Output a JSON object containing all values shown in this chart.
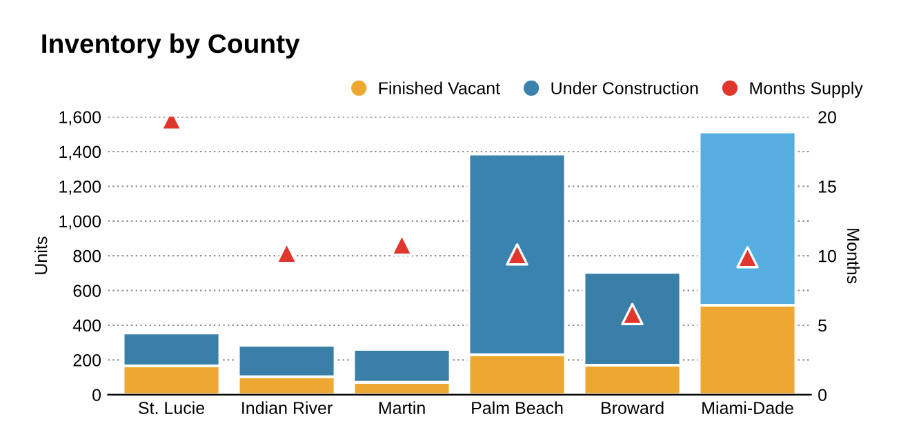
{
  "chart_data": {
    "type": "bar",
    "title": "Inventory by County",
    "ylabel": "Units",
    "y2label": "Months",
    "categories": [
      "St. Lucie",
      "Indian River",
      "Martin",
      "Palm Beach",
      "Broward",
      "Miami-Dade"
    ],
    "stacked": true,
    "series": [
      {
        "name": "Finished Vacant",
        "color": "#eea832",
        "values": [
          166,
          103,
          71,
          230,
          170,
          515
        ]
      },
      {
        "name": "Under Construction",
        "color": "#3a82ad",
        "colors": [
          "#3a7fa8",
          "#3a7fa8",
          "#3a7fa8",
          "#3a82b0",
          "#3a7fa8",
          "#56aee0"
        ],
        "values": [
          190,
          182,
          190,
          1156,
          535,
          998
        ]
      },
      {
        "name": "Months Supply",
        "type": "scatter",
        "axis": "y2",
        "marker": "triangle",
        "color": "#e0362c",
        "values": [
          19.8,
          10.2,
          10.8,
          10.1,
          5.8,
          9.9
        ]
      }
    ],
    "ylim": [
      0,
      1600
    ],
    "yticks": [
      0,
      {
        "value": 200,
        "label": "200"
      },
      {
        "value": 400,
        "label": "400"
      },
      {
        "value": 600,
        "label": "600"
      },
      {
        "value": 800,
        "label": "800"
      },
      {
        "value": 1000,
        "label": "1,000"
      },
      {
        "value": 1200,
        "label": "1,200"
      },
      {
        "value": 1400,
        "label": "1,400"
      },
      {
        "value": 1600,
        "label": "1,600"
      }
    ],
    "y2lim": [
      0,
      20
    ],
    "y2ticks": [
      0,
      5,
      10,
      15,
      20
    ],
    "grid": "y",
    "legend": "top right"
  }
}
